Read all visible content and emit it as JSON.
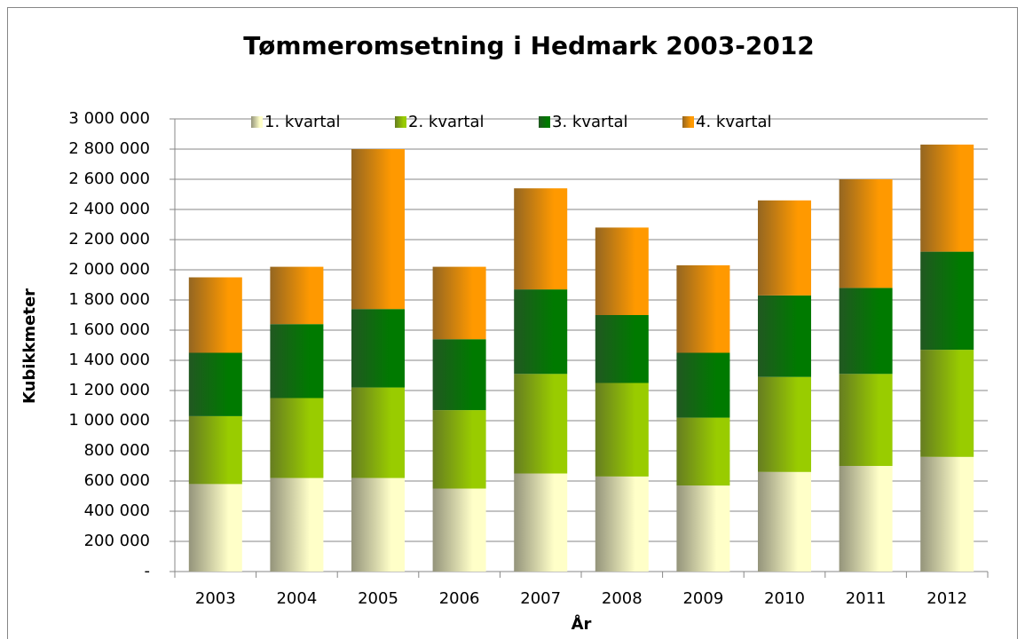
{
  "chart_data": {
    "type": "stacked_bar",
    "title": "Tømmeromsetning i Hedmark 2003-2012",
    "x_label": "År",
    "y_label": "Kubikkmeter",
    "categories": [
      "2003",
      "2004",
      "2005",
      "2006",
      "2007",
      "2008",
      "2009",
      "2010",
      "2011",
      "2012"
    ],
    "series": [
      {
        "name": "1. kvartal",
        "color": "#ffffc8",
        "values": [
          580000,
          620000,
          620000,
          550000,
          650000,
          630000,
          570000,
          660000,
          700000,
          760000
        ]
      },
      {
        "name": "2. kvartal",
        "color": "#99cc00",
        "values": [
          450000,
          530000,
          600000,
          520000,
          660000,
          620000,
          450000,
          630000,
          610000,
          710000
        ]
      },
      {
        "name": "3. kvartal",
        "color": "#007a00",
        "values": [
          420000,
          490000,
          520000,
          470000,
          560000,
          450000,
          430000,
          540000,
          570000,
          650000
        ]
      },
      {
        "name": "4. kvartal",
        "color": "#ff9900",
        "values": [
          500000,
          380000,
          1060000,
          480000,
          670000,
          580000,
          580000,
          630000,
          720000,
          710000
        ]
      }
    ],
    "ylim": [
      0,
      3000000
    ],
    "yticks": [
      {
        "value": 0,
        "label": "-"
      },
      {
        "value": 200000,
        "label": "200 000"
      },
      {
        "value": 400000,
        "label": "400 000"
      },
      {
        "value": 600000,
        "label": "600 000"
      },
      {
        "value": 800000,
        "label": "800 000"
      },
      {
        "value": 1000000,
        "label": "1 000 000"
      },
      {
        "value": 1200000,
        "label": "1 200 000"
      },
      {
        "value": 1400000,
        "label": "1 400 000"
      },
      {
        "value": 1600000,
        "label": "1 600 000"
      },
      {
        "value": 1800000,
        "label": "1 800 000"
      },
      {
        "value": 2000000,
        "label": "2 000 000"
      },
      {
        "value": 2200000,
        "label": "2 200 000"
      },
      {
        "value": 2400000,
        "label": "2 400 000"
      },
      {
        "value": 2600000,
        "label": "2 600 000"
      },
      {
        "value": 2800000,
        "label": "2 800 000"
      },
      {
        "value": 3000000,
        "label": "3 000 000"
      }
    ],
    "grid": true,
    "legend": "top"
  }
}
